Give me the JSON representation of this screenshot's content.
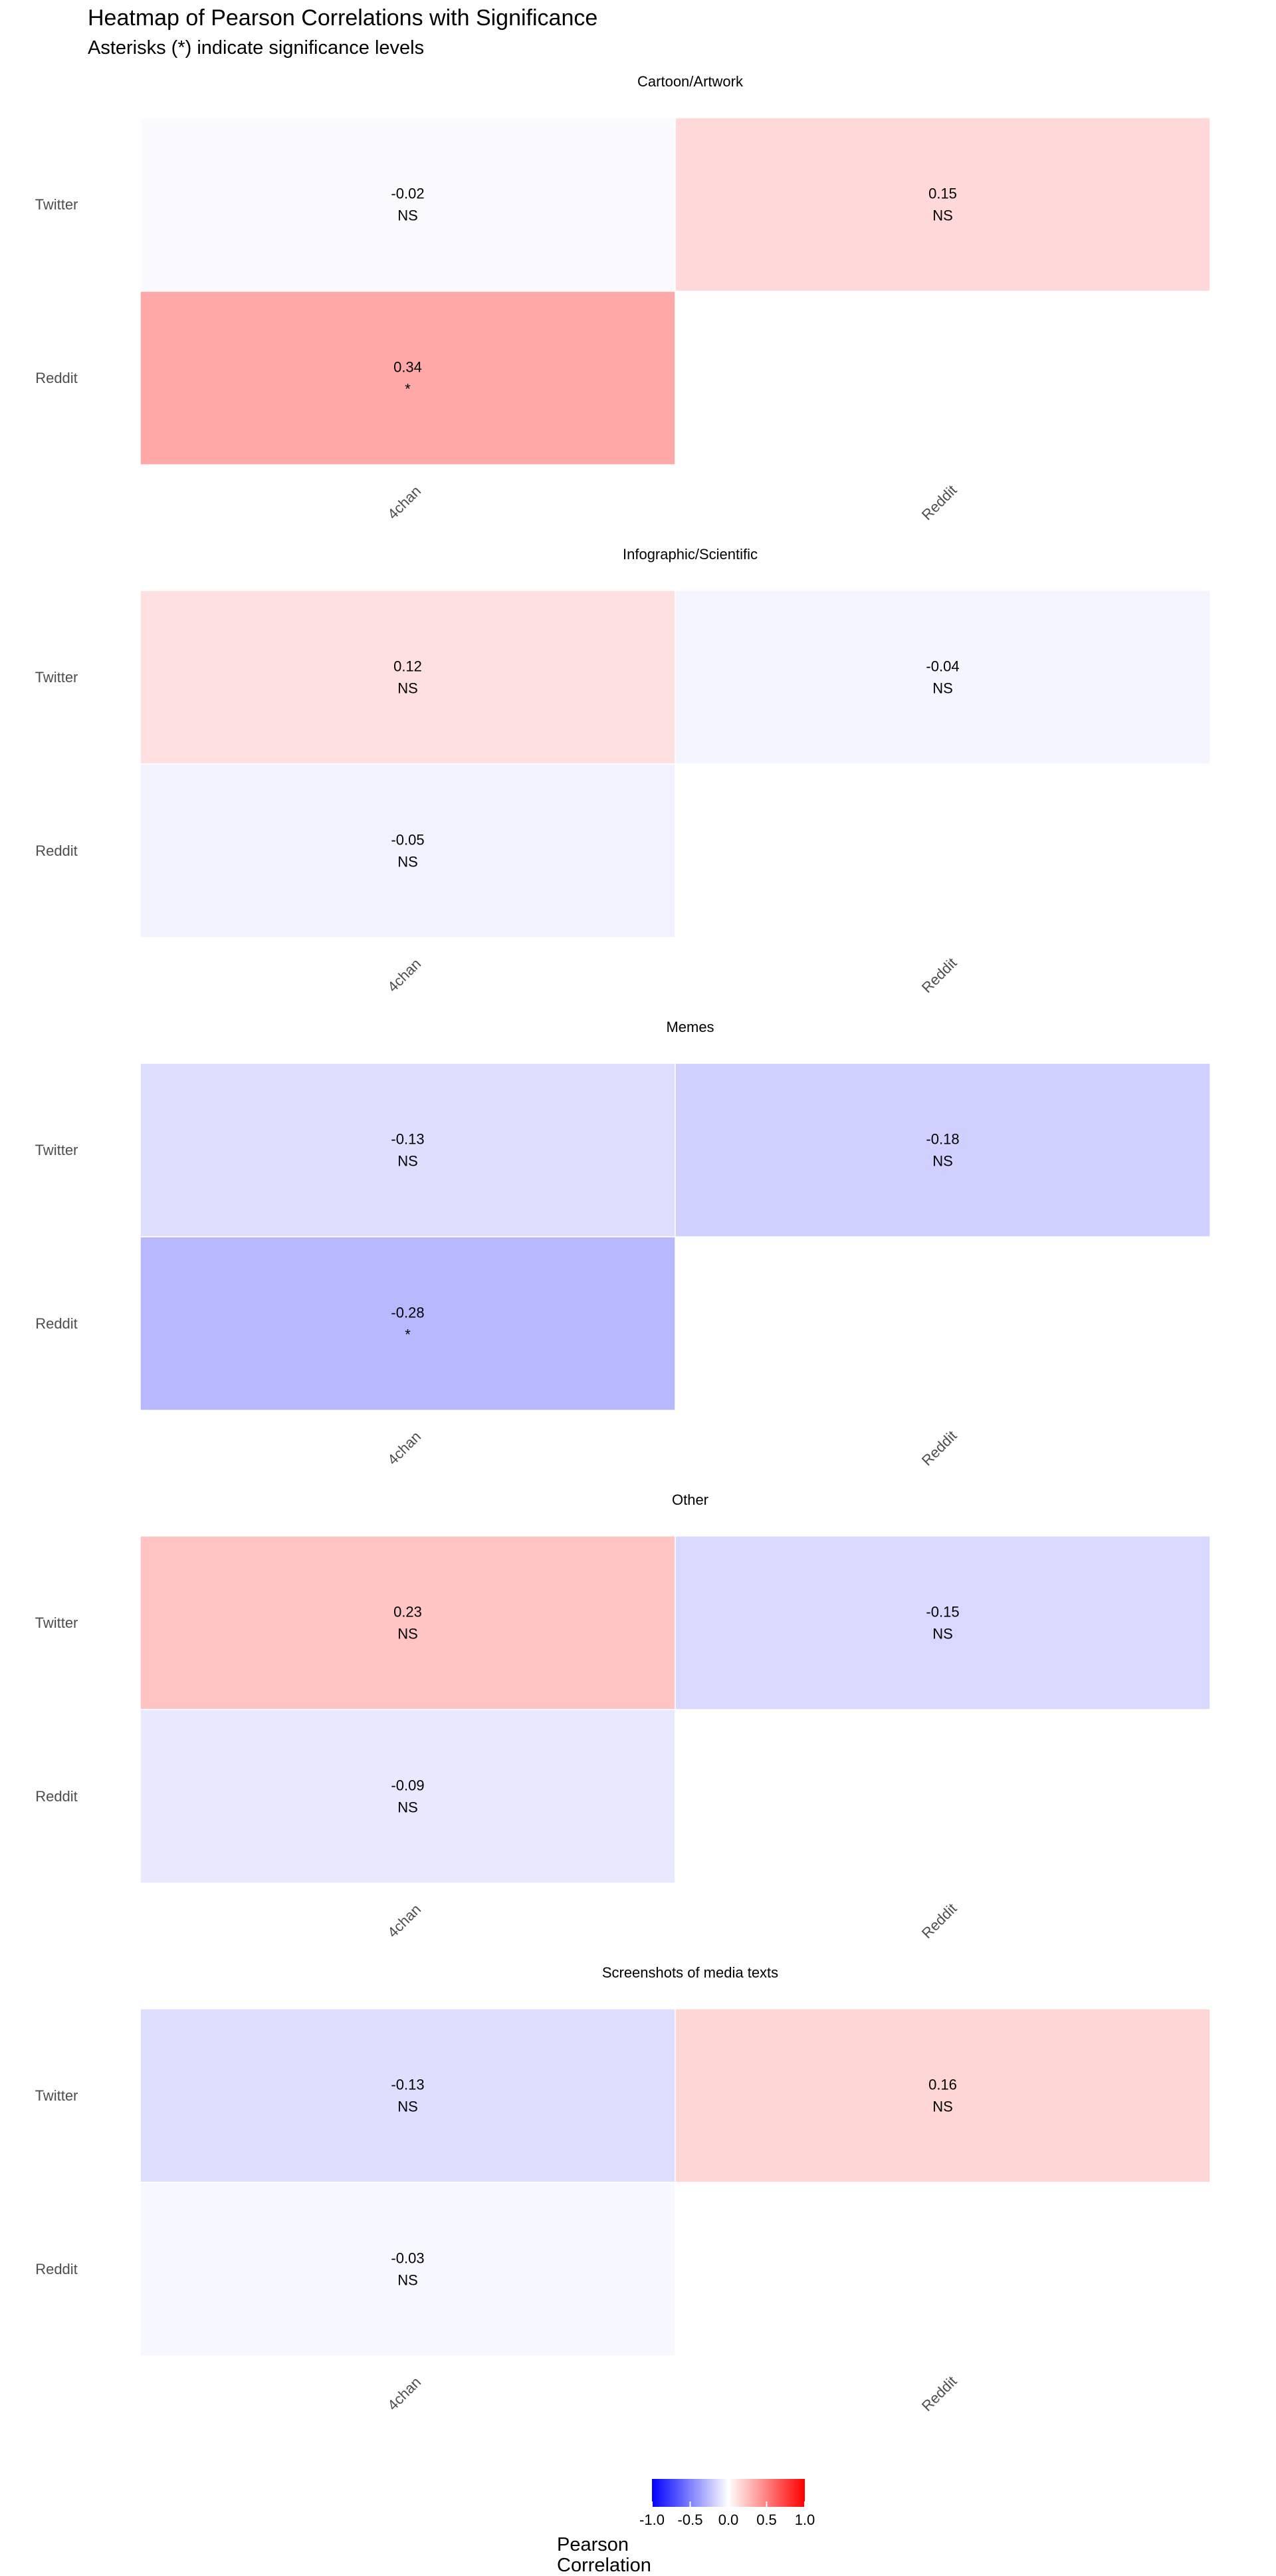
{
  "title": "Heatmap of Pearson Correlations with Significance",
  "subtitle": "Asterisks (*) indicate significance levels",
  "colors": {
    "low": "#0000ff",
    "mid": "#ffffff",
    "high": "#ff0000",
    "text": "#000000",
    "axis_text": "#4d4d4d"
  },
  "chart_data": [
    {
      "type": "heatmap",
      "title": "Cartoon/Artwork",
      "x": [
        "4chan",
        "Reddit"
      ],
      "y": [
        "Twitter",
        "Reddit"
      ],
      "cells": [
        {
          "x": "4chan",
          "y": "Twitter",
          "value": -0.02,
          "label": "-0.02",
          "sig": "NS"
        },
        {
          "x": "Reddit",
          "y": "Twitter",
          "value": 0.15,
          "label": "0.15",
          "sig": "NS"
        },
        {
          "x": "4chan",
          "y": "Reddit",
          "value": 0.34,
          "label": "0.34",
          "sig": "*"
        }
      ]
    },
    {
      "type": "heatmap",
      "title": "Infographic/Scientific",
      "x": [
        "4chan",
        "Reddit"
      ],
      "y": [
        "Twitter",
        "Reddit"
      ],
      "cells": [
        {
          "x": "4chan",
          "y": "Twitter",
          "value": 0.12,
          "label": "0.12",
          "sig": "NS"
        },
        {
          "x": "Reddit",
          "y": "Twitter",
          "value": -0.04,
          "label": "-0.04",
          "sig": "NS"
        },
        {
          "x": "4chan",
          "y": "Reddit",
          "value": -0.05,
          "label": "-0.05",
          "sig": "NS"
        }
      ]
    },
    {
      "type": "heatmap",
      "title": "Memes",
      "x": [
        "4chan",
        "Reddit"
      ],
      "y": [
        "Twitter",
        "Reddit"
      ],
      "cells": [
        {
          "x": "4chan",
          "y": "Twitter",
          "value": -0.13,
          "label": "-0.13",
          "sig": "NS"
        },
        {
          "x": "Reddit",
          "y": "Twitter",
          "value": -0.18,
          "label": "-0.18",
          "sig": "NS"
        },
        {
          "x": "4chan",
          "y": "Reddit",
          "value": -0.28,
          "label": "-0.28",
          "sig": "*"
        }
      ]
    },
    {
      "type": "heatmap",
      "title": "Other",
      "x": [
        "4chan",
        "Reddit"
      ],
      "y": [
        "Twitter",
        "Reddit"
      ],
      "cells": [
        {
          "x": "4chan",
          "y": "Twitter",
          "value": 0.23,
          "label": "0.23",
          "sig": "NS"
        },
        {
          "x": "Reddit",
          "y": "Twitter",
          "value": -0.15,
          "label": "-0.15",
          "sig": "NS"
        },
        {
          "x": "4chan",
          "y": "Reddit",
          "value": -0.09,
          "label": "-0.09",
          "sig": "NS"
        }
      ]
    },
    {
      "type": "heatmap",
      "title": "Screenshots of media texts",
      "x": [
        "4chan",
        "Reddit"
      ],
      "y": [
        "Twitter",
        "Reddit"
      ],
      "cells": [
        {
          "x": "4chan",
          "y": "Twitter",
          "value": -0.13,
          "label": "-0.13",
          "sig": "NS"
        },
        {
          "x": "Reddit",
          "y": "Twitter",
          "value": 0.16,
          "label": "0.16",
          "sig": "NS"
        },
        {
          "x": "4chan",
          "y": "Reddit",
          "value": -0.03,
          "label": "-0.03",
          "sig": "NS"
        }
      ]
    }
  ],
  "legend": {
    "title_line1": "Pearson",
    "title_line2": "Correlation",
    "range": [
      -1.0,
      1.0
    ],
    "ticks": [
      -1.0,
      -0.5,
      0.0,
      0.5,
      1.0
    ],
    "tick_labels": [
      "-1.0",
      "-0.5",
      "0.0",
      "0.5",
      "1.0"
    ]
  }
}
